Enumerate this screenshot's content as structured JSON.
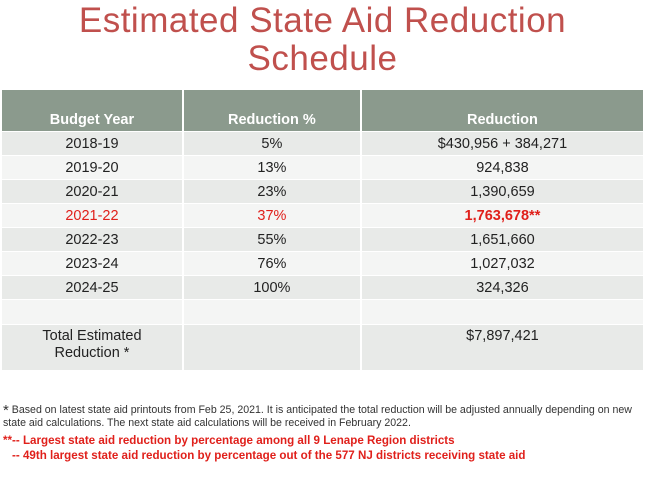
{
  "title": {
    "line1": "Estimated State Aid Reduction",
    "line2": "Schedule"
  },
  "table": {
    "headers": [
      "Budget Year",
      "Reduction %",
      "Reduction"
    ],
    "rows": [
      {
        "year": "2018-19",
        "pct": "5%",
        "reduction": "$430,956 + 384,271"
      },
      {
        "year": "2019-20",
        "pct": "13%",
        "reduction": "924,838"
      },
      {
        "year": "2020-21",
        "pct": "23%",
        "reduction": "1,390,659"
      },
      {
        "year": "2021-22",
        "pct": "37%",
        "reduction": "1,763,678**"
      },
      {
        "year": "2022-23",
        "pct": "55%",
        "reduction": "1,651,660"
      },
      {
        "year": "2023-24",
        "pct": "76%",
        "reduction": "1,027,032"
      },
      {
        "year": "2024-25",
        "pct": "100%",
        "reduction": "324,326"
      }
    ],
    "total": {
      "label_line1": "Total Estimated",
      "label_line2": "Reduction *",
      "value": "$7,897,421"
    }
  },
  "footnotes": {
    "star": "*",
    "note1": "Based on latest state aid printouts from Feb 25, 2021. It is anticipated the total reduction will be adjusted annually depending on new state aid calculations. The next state aid calculations will be received in February 2022.",
    "note2": "**-- Largest state aid reduction by percentage among all 9 Lenape Region districts",
    "note3": "-- 49th largest state aid reduction by percentage out of the 577 NJ districts receiving state aid"
  },
  "colors": {
    "title": "#c0504d",
    "header_bg": "#8b9a8d",
    "highlight": "#e0201b"
  }
}
